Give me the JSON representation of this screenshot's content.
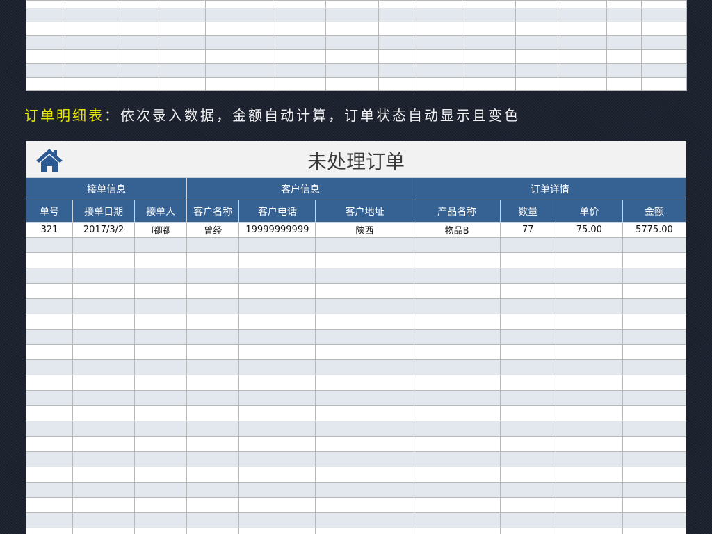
{
  "caption": {
    "highlight": "订单明细表",
    "rest": "：依次录入数据，金额自动计算，订单状态自动显示且变色"
  },
  "sheet": {
    "title": "未处理订单",
    "home_icon": "home-icon",
    "groups": [
      "接单信息",
      "客户信息",
      "订单详情"
    ],
    "columns": [
      "单号",
      "接单日期",
      "接单人",
      "客户名称",
      "客户电话",
      "客户地址",
      "产品名称",
      "数量",
      "单价",
      "金额"
    ],
    "rows": [
      [
        "321",
        "2017/3/2",
        "嘟嘟",
        "曾经",
        "19999999999",
        "陕西",
        "物品B",
        "77",
        "75.00",
        "5775.00"
      ]
    ]
  },
  "colors": {
    "header": "#356193",
    "stripe": "#e3e7ee",
    "highlight": "#e6e600"
  }
}
